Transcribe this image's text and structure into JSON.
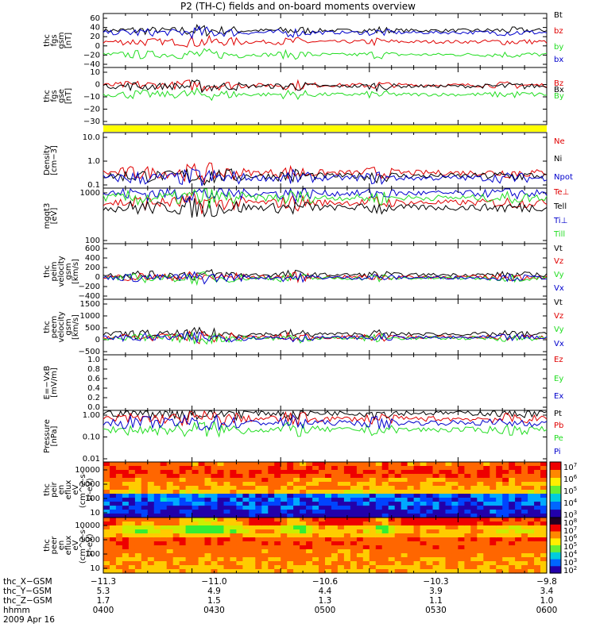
{
  "title": "P2 (TH-C) fields and on-board moments overview",
  "colors": {
    "black": "#000000",
    "red": "#e00000",
    "green": "#22dd22",
    "blue": "#0000cc",
    "yellow": "#ffff00"
  },
  "chart_data": [
    {
      "type": "line",
      "panel": "fgs_gsm",
      "ylabel": [
        "thc",
        "fgs",
        "gsm",
        "[nT]"
      ],
      "ylim": [
        -40,
        65
      ],
      "yticks": [
        "60",
        "40",
        "20",
        "0",
        "−20",
        "−40"
      ],
      "series": [
        {
          "name": "Bt",
          "color": "black",
          "level": 32
        },
        {
          "name": "bz",
          "color": "red",
          "level": 10
        },
        {
          "name": "by",
          "color": "green",
          "level": -15
        },
        {
          "name": "bx",
          "color": "blue",
          "level": 28
        }
      ]
    },
    {
      "type": "line",
      "panel": "fgs_gse",
      "ylabel": [
        "thc",
        "fgs",
        "gse",
        "[nT]"
      ],
      "ylim": [
        -35,
        20
      ],
      "yticks": [
        "10",
        "0",
        "−10",
        "−20",
        "−30"
      ],
      "series": [
        {
          "name": "Bz",
          "color": "red",
          "level": 3
        },
        {
          "name": "Bx",
          "color": "black",
          "level": 2
        },
        {
          "name": "By",
          "color": "green",
          "level": -6
        }
      ]
    },
    {
      "type": "line",
      "panel": "density",
      "ylabel": [
        "Density",
        "[cm−3]"
      ],
      "scale": "log",
      "ylim": [
        0.1,
        15
      ],
      "yticks": [
        "10.0",
        "1.0",
        "0.1"
      ],
      "series": [
        {
          "name": "Ne",
          "color": "red",
          "level": 0.4
        },
        {
          "name": "Ni",
          "color": "black",
          "level": 0.3
        },
        {
          "name": "Npot",
          "color": "blue",
          "level": 0.25
        }
      ]
    },
    {
      "type": "line",
      "panel": "temperature",
      "ylabel": [
        "mgqt3",
        "[eV]"
      ],
      "scale": "log",
      "ylim": [
        100,
        10000
      ],
      "yticks": [
        "1000",
        "100"
      ],
      "series": [
        {
          "name": "Te⊥",
          "color": "red",
          "level": 3000
        },
        {
          "name": "Tell",
          "color": "black",
          "level": 2000
        },
        {
          "name": "Ti⊥",
          "color": "blue",
          "level": 6500
        },
        {
          "name": "Till",
          "color": "green",
          "level": 4500
        }
      ]
    },
    {
      "type": "line",
      "panel": "peim_velocity",
      "ylabel": [
        "thc",
        "peim",
        "velocity",
        "gsm",
        "[km/s]"
      ],
      "ylim": [
        -400,
        600
      ],
      "yticks": [
        "600",
        "400",
        "200",
        "0",
        "−200",
        "−400"
      ],
      "series": [
        {
          "name": "Vt",
          "color": "black",
          "level": 40
        },
        {
          "name": "Vz",
          "color": "red",
          "level": 0
        },
        {
          "name": "Vy",
          "color": "green",
          "level": -20
        },
        {
          "name": "Vx",
          "color": "blue",
          "level": -10
        }
      ]
    },
    {
      "type": "line",
      "panel": "peem_velocity",
      "ylabel": [
        "thc",
        "peem",
        "velocity",
        "gsm",
        "[km/s]"
      ],
      "ylim": [
        -700,
        1500
      ],
      "yticks": [
        "1500",
        "1000",
        "500",
        "0",
        "−500"
      ],
      "series": [
        {
          "name": "Vt",
          "color": "black",
          "level": 120
        },
        {
          "name": "Vz",
          "color": "red",
          "level": 0
        },
        {
          "name": "Vy",
          "color": "green",
          "level": -40
        },
        {
          "name": "Vx",
          "color": "blue",
          "level": -20
        }
      ]
    },
    {
      "type": "line",
      "panel": "efield",
      "ylabel": [
        "E=−VxB",
        "[mV/m]"
      ],
      "ylim": [
        0,
        1
      ],
      "yticks": [
        "1.0",
        "0.8",
        "0.6",
        "0.4",
        "0.2",
        "0.0"
      ],
      "series": [
        {
          "name": "Ez",
          "color": "red"
        },
        {
          "name": "Ey",
          "color": "green"
        },
        {
          "name": "Ex",
          "color": "blue"
        }
      ]
    },
    {
      "type": "line",
      "panel": "pressure",
      "ylabel": [
        "Pressure",
        "[nPa]"
      ],
      "scale": "log",
      "ylim": [
        0.01,
        1.2
      ],
      "yticks": [
        "1.00",
        "0.10",
        "0.01"
      ],
      "series": [
        {
          "name": "Pt",
          "color": "black",
          "level": 0.95
        },
        {
          "name": "Pb",
          "color": "red",
          "level": 0.55
        },
        {
          "name": "Pe",
          "color": "green",
          "level": 0.2
        },
        {
          "name": "Pi",
          "color": "blue",
          "level": 0.38
        }
      ]
    },
    {
      "type": "heatmap",
      "panel": "peir_spectrum",
      "ylabel": [
        "thc",
        "peir",
        "en",
        "eflux",
        "eV",
        "(cm^2-s-",
        "sr-eV)"
      ],
      "yticks": [
        "10000",
        "1000",
        "100",
        "10"
      ],
      "colorbar_ticks": [
        "10^7",
        "10^6",
        "10^5",
        "10^4",
        "10^3"
      ]
    },
    {
      "type": "heatmap",
      "panel": "peer_spectrum",
      "ylabel": [
        "thc",
        "peer",
        "en",
        "eflux",
        "eV",
        "(cm^2-s-",
        "sr-eV)"
      ],
      "yticks": [
        "10000",
        "1000",
        "100",
        "10"
      ],
      "colorbar_ticks": [
        "10^8",
        "10^7",
        "10^6",
        "10^5",
        "10^4",
        "10^3",
        "10^2"
      ]
    }
  ],
  "xaxis": {
    "rows": [
      {
        "label": "thc_X−GSM",
        "values": [
          "−11.3",
          "−11.0",
          "−10.6",
          "−10.3",
          "−9.8"
        ]
      },
      {
        "label": "thc_Y−GSM",
        "values": [
          "5.3",
          "4.9",
          "4.4",
          "3.9",
          "3.4"
        ]
      },
      {
        "label": "thc_Z−GSM",
        "values": [
          "1.7",
          "1.5",
          "1.3",
          "1.1",
          "1.0"
        ]
      },
      {
        "label": "hhmm",
        "values": [
          "0400",
          "0430",
          "0500",
          "0530",
          "0600"
        ]
      }
    ],
    "date": "2009 Apr 16"
  }
}
